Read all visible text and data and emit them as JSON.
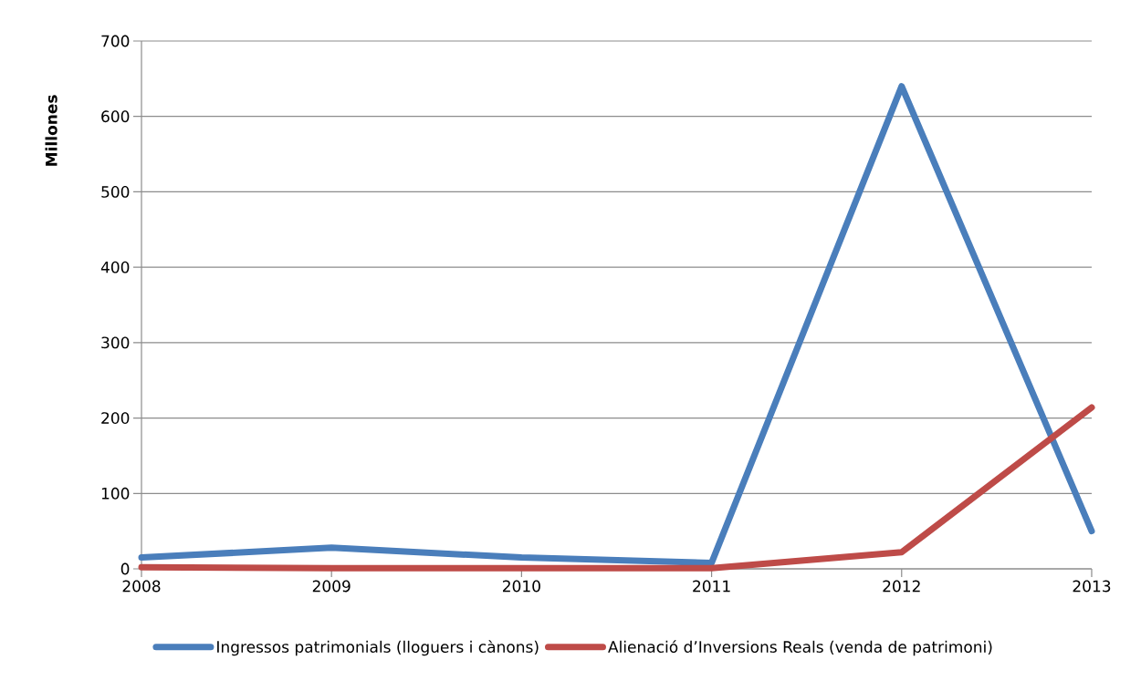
{
  "chart_data": {
    "type": "line",
    "ylabel": "Millones",
    "categories": [
      "2008",
      "2009",
      "2010",
      "2011",
      "2012",
      "2013"
    ],
    "series": [
      {
        "name": "Ingressos patrimonials (lloguers i cànons)",
        "color": "#4a7ebb",
        "values": [
          15,
          28,
          15,
          8,
          640,
          50
        ]
      },
      {
        "name": "Alienació d’Inversions Reals (venda de patrimoni)",
        "color": "#be4b48",
        "values": [
          2,
          1,
          1,
          1,
          22,
          214
        ]
      }
    ],
    "ylim": [
      0,
      700
    ],
    "yticks": [
      0,
      100,
      200,
      300,
      400,
      500,
      600,
      700
    ],
    "grid": "y",
    "legend": "bottom",
    "marker": "none",
    "line_style": "solid"
  }
}
